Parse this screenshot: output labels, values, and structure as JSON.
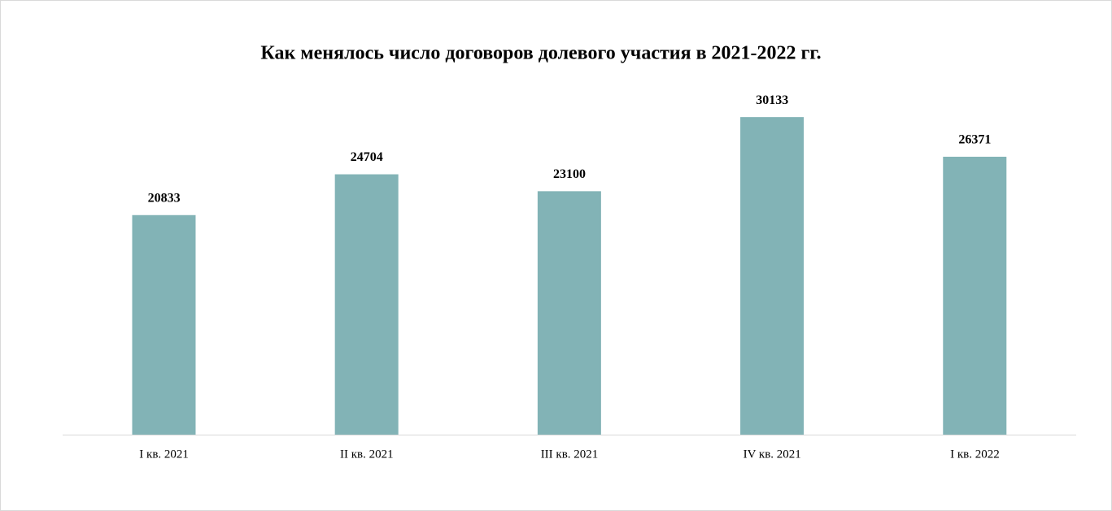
{
  "chart_data": {
    "type": "bar",
    "title": "Как менялось число договоров долевого участия в 2021-2022 гг.",
    "categories": [
      "I кв. 2021",
      "II кв. 2021",
      "III кв. 2021",
      "IV кв. 2021",
      "I кв. 2022"
    ],
    "values": [
      20833,
      24704,
      23100,
      30133,
      26371
    ],
    "color": "#82b3b6",
    "ylim": [
      0,
      35000
    ]
  }
}
